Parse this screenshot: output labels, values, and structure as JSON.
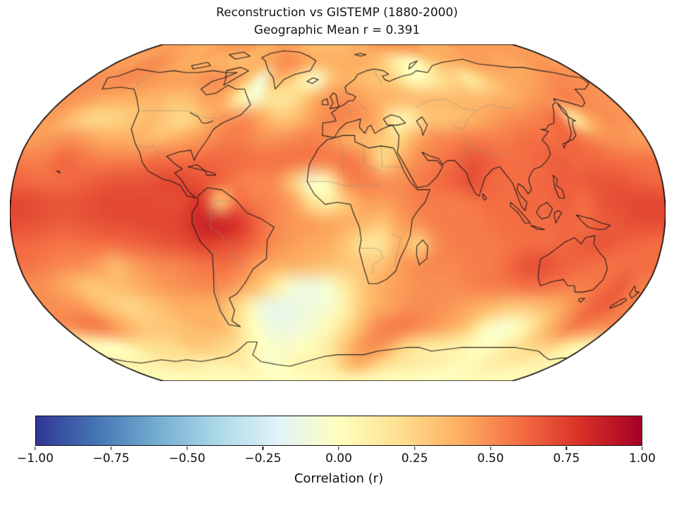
{
  "page": {
    "background": "#ffffff"
  },
  "chart_data": {
    "type": "heatmap",
    "projection": "robinson",
    "title": "Reconstruction vs GISTEMP (1880-2000)",
    "subtitle": "Geographic Mean r = 0.391",
    "geographic_mean_r": 0.391,
    "colorbar": {
      "label": "Correlation (r)",
      "vmin": -1.0,
      "vmax": 1.0,
      "ticks": [
        -1.0,
        -0.75,
        -0.5,
        -0.25,
        0.0,
        0.25,
        0.5,
        0.75,
        1.0
      ],
      "tick_labels": [
        "−1.00",
        "−0.75",
        "−0.50",
        "−0.25",
        "0.00",
        "0.25",
        "0.50",
        "0.75",
        "1.00"
      ],
      "colormap": "RdYlBu_r",
      "colormap_colors": [
        "#313695",
        "#4575b4",
        "#74add1",
        "#abd9e9",
        "#e0f3f8",
        "#ffffbf",
        "#fee090",
        "#fdae61",
        "#f46d43",
        "#d73027",
        "#a50026"
      ]
    },
    "styles": {
      "coastline_color": "#1a1a1a",
      "border_color": "#8f8f80",
      "outline_color": "#000000"
    },
    "grid": {
      "lon_min": -180,
      "lon_max": 180,
      "lat_min": -90,
      "lat_max": 90,
      "n_lon": 36,
      "n_lat": 18,
      "values": [
        [
          0.45,
          0.45,
          0.45,
          0.4,
          0.4,
          0.4,
          0.45,
          0.45,
          0.45,
          0.45,
          0.4,
          0.4,
          0.45,
          0.45,
          0.4,
          0.35,
          0.35,
          0.35,
          0.35,
          0.4,
          0.4,
          0.45,
          0.45,
          0.45,
          0.45,
          0.45,
          0.4,
          0.4,
          0.4,
          0.45,
          0.45,
          0.45,
          0.45,
          0.45,
          0.45,
          0.45
        ],
        [
          0.45,
          0.45,
          0.5,
          0.5,
          0.45,
          0.4,
          0.4,
          0.38,
          0.38,
          0.35,
          0.35,
          0.38,
          0.42,
          0.5,
          0.5,
          0.42,
          0.38,
          0.38,
          0.4,
          0.4,
          0.38,
          0.3,
          0.15,
          0.02,
          0.05,
          0.25,
          0.35,
          0.4,
          0.42,
          0.45,
          0.45,
          0.42,
          0.42,
          0.45,
          0.48,
          0.45
        ],
        [
          0.5,
          0.5,
          0.52,
          0.5,
          0.48,
          0.45,
          0.45,
          0.45,
          0.5,
          0.5,
          0.45,
          0.3,
          -0.08,
          0.35,
          0.3,
          0.1,
          -0.05,
          0.3,
          0.38,
          0.35,
          0.32,
          0.3,
          0.2,
          0.02,
          0.08,
          0.2,
          0.25,
          0.12,
          0.25,
          0.35,
          0.4,
          0.42,
          0.45,
          0.5,
          0.52,
          0.5
        ],
        [
          0.48,
          0.45,
          0.42,
          0.4,
          0.4,
          0.38,
          0.35,
          0.32,
          0.35,
          0.45,
          0.4,
          0.1,
          -0.05,
          0.15,
          0.15,
          0.25,
          0.4,
          0.48,
          0.5,
          0.45,
          0.4,
          0.38,
          0.35,
          0.35,
          0.35,
          0.35,
          0.35,
          0.35,
          0.38,
          0.4,
          0.45,
          0.48,
          0.52,
          0.55,
          0.5,
          0.48
        ],
        [
          0.45,
          0.35,
          0.25,
          0.22,
          0.25,
          0.3,
          0.35,
          0.28,
          0.22,
          0.3,
          0.45,
          0.5,
          0.5,
          0.4,
          0.3,
          0.35,
          0.45,
          0.52,
          0.52,
          0.48,
          0.4,
          0.08,
          0.1,
          0.3,
          0.32,
          0.35,
          0.4,
          0.45,
          0.5,
          0.52,
          0.55,
          0.6,
          0.12,
          0.4,
          0.5,
          0.48
        ],
        [
          0.45,
          0.48,
          0.5,
          0.45,
          0.4,
          0.4,
          0.38,
          0.35,
          0.4,
          0.45,
          0.5,
          0.55,
          0.55,
          0.5,
          0.5,
          0.52,
          0.55,
          0.5,
          0.4,
          0.35,
          0.3,
          0.22,
          0.4,
          0.5,
          0.52,
          0.55,
          0.55,
          0.55,
          0.58,
          0.6,
          0.6,
          0.62,
          0.55,
          0.5,
          0.48,
          0.45
        ],
        [
          0.55,
          0.55,
          0.62,
          0.58,
          0.55,
          0.55,
          0.55,
          0.6,
          0.6,
          0.6,
          0.62,
          0.62,
          0.6,
          0.58,
          0.58,
          0.58,
          0.55,
          0.55,
          0.58,
          0.5,
          0.22,
          0.4,
          0.5,
          0.55,
          0.6,
          0.68,
          0.65,
          0.6,
          0.6,
          0.62,
          0.65,
          0.62,
          0.62,
          0.6,
          0.58,
          0.58
        ],
        [
          0.62,
          0.6,
          0.6,
          0.62,
          0.65,
          0.68,
          0.68,
          0.68,
          0.72,
          0.72,
          0.68,
          0.62,
          0.55,
          0.52,
          0.5,
          0.3,
          -0.05,
          0.05,
          0.5,
          0.55,
          0.5,
          0.5,
          0.55,
          0.6,
          0.65,
          0.7,
          0.62,
          0.6,
          0.6,
          0.62,
          0.65,
          0.65,
          0.68,
          0.68,
          0.65,
          0.62
        ],
        [
          0.72,
          0.7,
          0.68,
          0.68,
          0.7,
          0.72,
          0.72,
          0.72,
          0.7,
          0.72,
          0.78,
          0.3,
          0.6,
          0.55,
          0.52,
          0.45,
          0.2,
          0.1,
          0.3,
          0.45,
          0.45,
          0.5,
          0.55,
          0.55,
          0.55,
          0.58,
          0.6,
          0.6,
          0.62,
          0.62,
          0.65,
          0.6,
          0.68,
          0.7,
          0.72,
          0.72
        ],
        [
          0.7,
          0.68,
          0.66,
          0.66,
          0.68,
          0.7,
          0.7,
          0.72,
          0.72,
          0.75,
          0.85,
          0.85,
          0.8,
          0.65,
          0.52,
          0.48,
          0.45,
          0.42,
          0.4,
          0.35,
          0.3,
          0.45,
          0.5,
          0.55,
          0.55,
          0.55,
          0.58,
          0.6,
          0.6,
          0.6,
          0.62,
          0.6,
          0.65,
          0.68,
          0.7,
          0.7
        ],
        [
          0.62,
          0.6,
          0.58,
          0.58,
          0.6,
          0.6,
          0.62,
          0.65,
          0.68,
          0.7,
          0.75,
          0.72,
          0.68,
          0.6,
          0.5,
          0.45,
          0.42,
          0.4,
          0.3,
          0.15,
          0.18,
          0.4,
          0.25,
          0.5,
          0.55,
          0.55,
          0.55,
          0.58,
          0.6,
          0.6,
          0.62,
          0.65,
          0.68,
          0.65,
          0.62,
          0.6
        ],
        [
          0.58,
          0.55,
          0.52,
          0.5,
          0.45,
          0.35,
          0.45,
          0.5,
          0.52,
          0.55,
          0.58,
          0.6,
          0.55,
          0.45,
          0.4,
          0.38,
          0.35,
          0.32,
          0.3,
          0.3,
          0.32,
          0.45,
          0.5,
          0.52,
          0.52,
          0.55,
          0.55,
          0.6,
          0.68,
          0.7,
          0.65,
          0.62,
          0.6,
          0.58,
          0.6,
          0.6
        ],
        [
          0.5,
          0.45,
          0.38,
          0.3,
          0.32,
          0.35,
          0.4,
          0.45,
          0.48,
          0.5,
          0.52,
          0.5,
          0.42,
          0.3,
          0.1,
          -0.08,
          -0.1,
          -0.05,
          0.15,
          0.3,
          0.4,
          0.45,
          0.48,
          0.5,
          0.5,
          0.52,
          0.55,
          0.55,
          0.58,
          0.6,
          0.58,
          0.55,
          0.55,
          0.6,
          0.65,
          0.55
        ],
        [
          0.5,
          0.48,
          0.45,
          0.35,
          0.28,
          0.25,
          0.3,
          0.35,
          0.4,
          0.4,
          0.38,
          0.3,
          0.1,
          -0.12,
          -0.15,
          -0.12,
          -0.1,
          -0.05,
          0.1,
          0.3,
          0.4,
          0.45,
          0.5,
          0.5,
          0.48,
          0.45,
          0.4,
          0.35,
          0.3,
          0.3,
          0.35,
          0.4,
          0.5,
          0.62,
          0.65,
          0.55
        ],
        [
          0.5,
          0.55,
          0.55,
          0.45,
          0.35,
          0.3,
          0.3,
          0.32,
          0.35,
          0.38,
          0.35,
          0.2,
          0.0,
          -0.1,
          -0.12,
          -0.1,
          -0.05,
          0.05,
          0.2,
          0.35,
          0.5,
          0.55,
          0.55,
          0.5,
          0.45,
          0.4,
          0.3,
          0.1,
          -0.05,
          -0.02,
          0.1,
          0.3,
          0.45,
          0.55,
          0.52,
          0.5
        ],
        [
          0.02,
          0.0,
          0.05,
          0.15,
          0.2,
          0.22,
          0.25,
          0.3,
          0.3,
          0.25,
          0.2,
          0.1,
          0.0,
          -0.05,
          -0.05,
          0.0,
          0.05,
          0.15,
          0.3,
          0.45,
          0.5,
          0.45,
          0.3,
          0.2,
          0.15,
          0.12,
          0.1,
          0.05,
          0.0,
          0.05,
          0.12,
          0.2,
          0.25,
          0.25,
          0.15,
          0.05
        ],
        [
          0.08,
          0.08,
          0.1,
          0.12,
          0.15,
          0.15,
          0.12,
          0.1,
          0.1,
          0.12,
          0.1,
          0.02,
          -0.05,
          0.0,
          0.05,
          0.08,
          0.1,
          0.15,
          0.3,
          0.4,
          0.35,
          0.25,
          0.18,
          0.15,
          0.12,
          0.1,
          0.08,
          0.05,
          0.02,
          0.05,
          0.1,
          0.12,
          0.12,
          0.1,
          0.08,
          0.08
        ],
        [
          0.02,
          0.02,
          0.02,
          0.03,
          0.03,
          0.02,
          0.02,
          0.02,
          0.02,
          0.03,
          0.02,
          0.0,
          0.0,
          0.0,
          0.02,
          0.02,
          0.03,
          0.05,
          0.08,
          0.1,
          0.08,
          0.05,
          0.03,
          0.02,
          0.02,
          0.02,
          0.0,
          0.0,
          0.0,
          0.02,
          0.02,
          0.03,
          0.03,
          0.02,
          0.02,
          0.02
        ]
      ]
    }
  }
}
